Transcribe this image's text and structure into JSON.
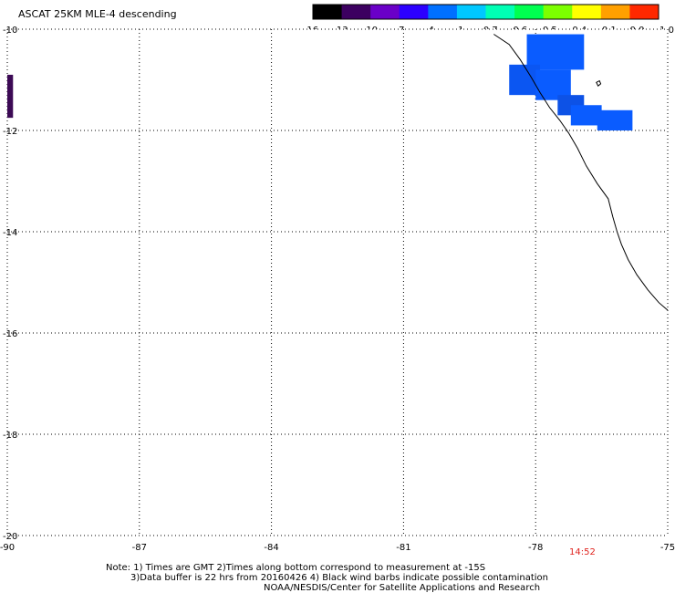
{
  "title": "ASCAT 25KM MLE-4 descending",
  "colorbar": {
    "tick_labels": [
      "-16",
      "-13",
      "-10",
      "-7",
      "-4",
      "-1",
      "-0.7",
      "-0.6",
      "-0.5",
      "-0.4",
      "-0.1",
      "0.0",
      "1.0"
    ],
    "colors": [
      "#000000",
      "#3c0060",
      "#6a00c8",
      "#2c00ff",
      "#0070ff",
      "#00c8ff",
      "#00ffb4",
      "#00ff50",
      "#7cff00",
      "#ffff00",
      "#ffa000",
      "#ff2800"
    ]
  },
  "axes": {
    "lon_min": -90,
    "lon_max": -75,
    "lat_min": -20,
    "lat_max": -10,
    "x_ticks": [
      "-90",
      "-87",
      "-84",
      "-81",
      "-78",
      "-75"
    ],
    "y_ticks": [
      "-10",
      "-12",
      "-14",
      "-16",
      "-18",
      "-20"
    ],
    "x_tick_values": [
      -90,
      -87,
      -84,
      -81,
      -78,
      -75
    ],
    "y_tick_values": [
      -10,
      -12,
      -14,
      -16,
      -18,
      -20
    ]
  },
  "data_cells": [
    {
      "lon0": -78.2,
      "lon1": -76.9,
      "lat0": -10.8,
      "lat1": -10.1,
      "color": "#0a5cff"
    },
    {
      "lon0": -78.6,
      "lon1": -77.9,
      "lat0": -11.3,
      "lat1": -10.7,
      "color": "#0b56f2"
    },
    {
      "lon0": -78.0,
      "lon1": -77.2,
      "lat0": -11.4,
      "lat1": -10.8,
      "color": "#0a5cff"
    },
    {
      "lon0": -77.5,
      "lon1": -76.9,
      "lat0": -11.7,
      "lat1": -11.3,
      "color": "#0d52e6"
    },
    {
      "lon0": -77.2,
      "lon1": -76.5,
      "lat0": -11.9,
      "lat1": -11.5,
      "color": "#0a5cff"
    },
    {
      "lon0": -76.6,
      "lon1": -75.8,
      "lat0": -12.0,
      "lat1": -11.6,
      "color": "#0a5cff"
    }
  ],
  "swath_strip": {
    "color": "#3c0a55"
  },
  "coastline": [
    [
      -78.95,
      -10.1
    ],
    [
      -78.6,
      -10.3
    ],
    [
      -78.35,
      -10.6
    ],
    [
      -78.1,
      -10.95
    ],
    [
      -77.9,
      -11.25
    ],
    [
      -77.68,
      -11.55
    ],
    [
      -77.45,
      -11.8
    ],
    [
      -77.25,
      -12.05
    ],
    [
      -77.05,
      -12.35
    ],
    [
      -76.85,
      -12.7
    ],
    [
      -76.6,
      -13.05
    ],
    [
      -76.35,
      -13.35
    ],
    [
      -76.25,
      -13.7
    ],
    [
      -76.15,
      -14.0
    ],
    [
      -76.05,
      -14.25
    ],
    [
      -75.9,
      -14.55
    ],
    [
      -75.7,
      -14.85
    ],
    [
      -75.45,
      -15.15
    ],
    [
      -75.2,
      -15.4
    ],
    [
      -75.0,
      -15.55
    ]
  ],
  "island": [
    [
      -76.62,
      -11.05
    ],
    [
      -76.55,
      -11.02
    ],
    [
      -76.52,
      -11.08
    ],
    [
      -76.58,
      -11.12
    ],
    [
      -76.62,
      -11.05
    ]
  ],
  "notes": [
    "Note: 1) Times are GMT 2)Times along bottom correspond to measurement at -15S",
    "3)Data buffer is 22 hrs from 20160426 4) Black wind barbs indicate possible contamination",
    "NOAA/NESDIS/Center for Satellite Applications and Research"
  ],
  "time_label": "14:52"
}
